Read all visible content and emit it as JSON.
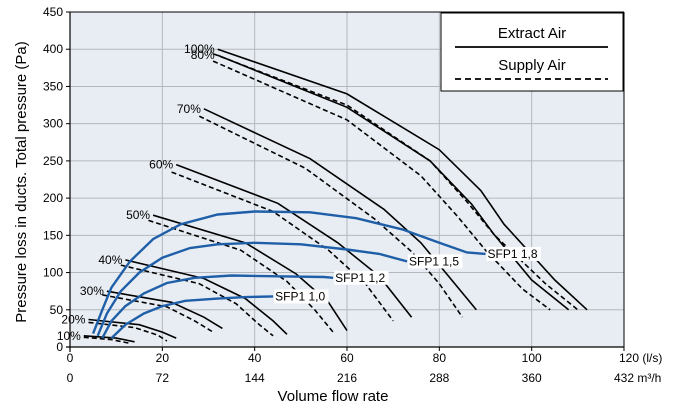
{
  "chart_data": {
    "type": "line",
    "title": "",
    "xlabel": "Volume flow rate",
    "ylabel": "Pressure loss in ducts. Total pressure (Pa)",
    "xlim": [
      0,
      120
    ],
    "ylim": [
      0,
      450
    ],
    "x_ticks": [
      0,
      20,
      40,
      60,
      80,
      100,
      120
    ],
    "x_tick_labels": [
      "0",
      "20",
      "40",
      "60",
      "80",
      "100",
      "120"
    ],
    "x_unit_label": "(l/s)",
    "x2_tick_labels": [
      "0",
      "72",
      "144",
      "216",
      "288",
      "360",
      "432"
    ],
    "x2_unit_label": "m³/h",
    "y_ticks": [
      0,
      50,
      100,
      150,
      200,
      250,
      300,
      350,
      400,
      450
    ],
    "y_tick_labels": [
      "0",
      "50",
      "100",
      "150",
      "200",
      "250",
      "300",
      "350",
      "400",
      "450"
    ],
    "grid": true,
    "background": "#e8edf3",
    "legend_position": "top-right",
    "legend": [
      {
        "label": "Extract Air",
        "style": "solid"
      },
      {
        "label": "Supply Air",
        "style": "dashed"
      }
    ],
    "fan_curves": [
      {
        "label": "100%",
        "extract": [
          [
            32,
            400
          ],
          [
            60,
            340
          ],
          [
            80,
            265
          ],
          [
            89,
            210
          ],
          [
            94,
            165
          ],
          [
            105,
            90
          ],
          [
            112,
            50
          ]
        ],
        "supply": [
          [
            31,
            394
          ],
          [
            60,
            325
          ],
          [
            78,
            250
          ],
          [
            86,
            195
          ],
          [
            92,
            150
          ],
          [
            103,
            85
          ],
          [
            110,
            50
          ]
        ]
      },
      {
        "label": "80%",
        "extract": [
          [
            32,
            392
          ],
          [
            60,
            322
          ],
          [
            78,
            250
          ],
          [
            87,
            192
          ],
          [
            92,
            150
          ],
          [
            100,
            90
          ],
          [
            108,
            50
          ]
        ],
        "supply": [
          [
            31,
            384
          ],
          [
            60,
            305
          ],
          [
            76,
            230
          ],
          [
            84,
            175
          ],
          [
            90,
            130
          ],
          [
            98,
            78
          ],
          [
            104,
            50
          ]
        ]
      },
      {
        "label": "70%",
        "extract": [
          [
            29,
            320
          ],
          [
            52,
            253
          ],
          [
            68,
            185
          ],
          [
            76,
            140
          ],
          [
            82,
            95
          ],
          [
            88,
            50
          ]
        ],
        "supply": [
          [
            28,
            310
          ],
          [
            51,
            240
          ],
          [
            66,
            172
          ],
          [
            74,
            128
          ],
          [
            80,
            85
          ],
          [
            85,
            40
          ]
        ]
      },
      {
        "label": "60%",
        "extract": [
          [
            23,
            245
          ],
          [
            45,
            193
          ],
          [
            58,
            140
          ],
          [
            67,
            95
          ],
          [
            74,
            40
          ]
        ],
        "supply": [
          [
            22,
            235
          ],
          [
            44,
            182
          ],
          [
            56,
            130
          ],
          [
            64,
            85
          ],
          [
            70,
            35
          ]
        ]
      },
      {
        "label": "50%",
        "extract": [
          [
            18,
            177
          ],
          [
            38,
            140
          ],
          [
            49,
            98
          ],
          [
            56,
            60
          ],
          [
            60,
            22
          ]
        ],
        "supply": [
          [
            17,
            170
          ],
          [
            37,
            130
          ],
          [
            47,
            88
          ],
          [
            53,
            50
          ],
          [
            57,
            20
          ]
        ]
      },
      {
        "label": "40%",
        "extract": [
          [
            12,
            117
          ],
          [
            29,
            92
          ],
          [
            38,
            65
          ],
          [
            44,
            35
          ],
          [
            47,
            17
          ]
        ],
        "supply": [
          [
            11,
            110
          ],
          [
            28,
            85
          ],
          [
            36,
            58
          ],
          [
            41,
            30
          ],
          [
            44,
            15
          ]
        ]
      },
      {
        "label": "30%",
        "extract": [
          [
            8,
            75
          ],
          [
            22,
            60
          ],
          [
            29,
            40
          ],
          [
            33,
            25
          ]
        ],
        "supply": [
          [
            7,
            70
          ],
          [
            21,
            54
          ],
          [
            27,
            35
          ],
          [
            31,
            20
          ]
        ]
      },
      {
        "label": "20%",
        "extract": [
          [
            4,
            37
          ],
          [
            15,
            30
          ],
          [
            20,
            20
          ],
          [
            23,
            12
          ]
        ],
        "supply": [
          [
            4,
            33
          ],
          [
            14,
            26
          ],
          [
            19,
            16
          ],
          [
            21,
            8
          ]
        ]
      },
      {
        "label": "10%",
        "extract": [
          [
            3,
            15
          ],
          [
            10,
            12
          ],
          [
            14,
            7
          ]
        ],
        "supply": [
          [
            3,
            13
          ],
          [
            9,
            10
          ],
          [
            13,
            5
          ]
        ]
      }
    ],
    "sfp_curves": [
      {
        "label": "SFP1 1,0",
        "points": [
          [
            9,
            12
          ],
          [
            12,
            30
          ],
          [
            16,
            45
          ],
          [
            20,
            55
          ],
          [
            25,
            62
          ],
          [
            32,
            65
          ],
          [
            38,
            67
          ],
          [
            44,
            68
          ]
        ]
      },
      {
        "label": "SFP1 1,2",
        "points": [
          [
            7,
            12
          ],
          [
            9,
            35
          ],
          [
            12,
            55
          ],
          [
            16,
            72
          ],
          [
            21,
            86
          ],
          [
            27,
            93
          ],
          [
            35,
            96
          ],
          [
            45,
            95
          ],
          [
            55,
            94
          ],
          [
            57,
            93
          ]
        ]
      },
      {
        "label": "SFP1 1,5",
        "points": [
          [
            6,
            15
          ],
          [
            8,
            45
          ],
          [
            11,
            75
          ],
          [
            15,
            100
          ],
          [
            20,
            120
          ],
          [
            26,
            133
          ],
          [
            32,
            138
          ],
          [
            40,
            140
          ],
          [
            50,
            138
          ],
          [
            60,
            131
          ],
          [
            67,
            125
          ],
          [
            73,
            115
          ]
        ]
      },
      {
        "label": "SFP1 1,8",
        "points": [
          [
            5,
            18
          ],
          [
            7,
            50
          ],
          [
            9,
            80
          ],
          [
            13,
            115
          ],
          [
            18,
            145
          ],
          [
            24,
            165
          ],
          [
            32,
            178
          ],
          [
            40,
            182
          ],
          [
            52,
            181
          ],
          [
            62,
            173
          ],
          [
            72,
            158
          ],
          [
            80,
            140
          ],
          [
            86,
            127
          ],
          [
            90,
            125
          ]
        ]
      }
    ],
    "colors": {
      "fan_curve": "#000000",
      "sfp_curve": "#1f5fa8",
      "grid": "#b4b8bd"
    }
  }
}
